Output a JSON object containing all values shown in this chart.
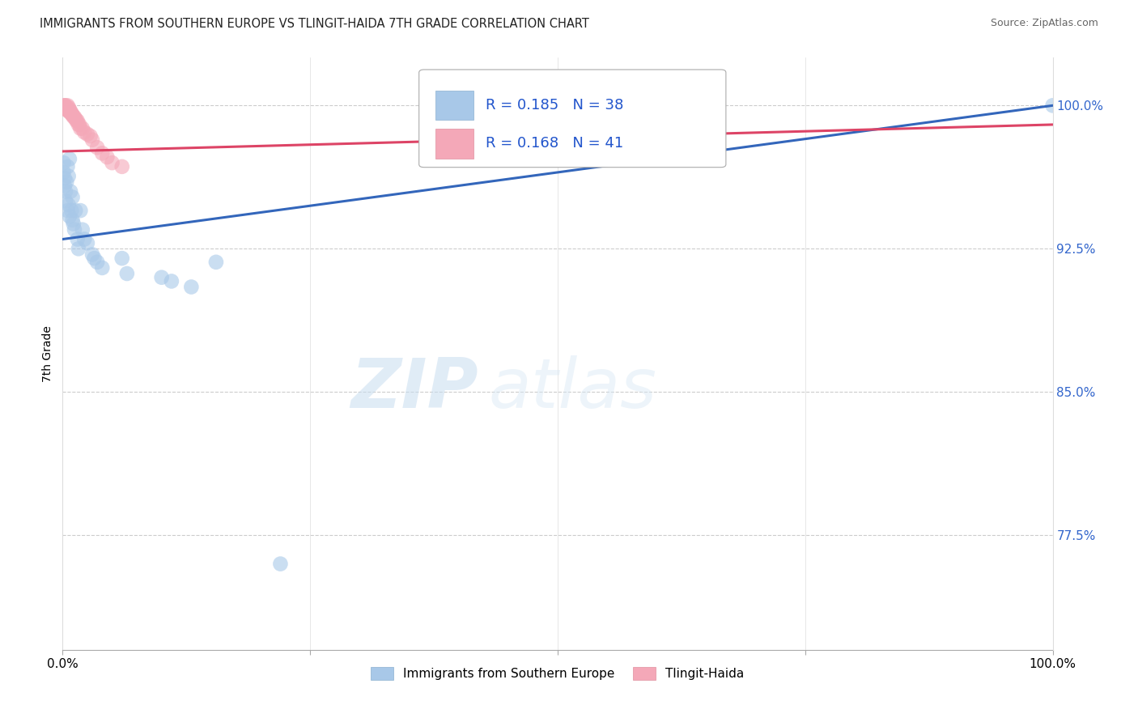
{
  "title": "IMMIGRANTS FROM SOUTHERN EUROPE VS TLINGIT-HAIDA 7TH GRADE CORRELATION CHART",
  "source": "Source: ZipAtlas.com",
  "ylabel": "7th Grade",
  "ytick_labels": [
    "77.5%",
    "85.0%",
    "92.5%",
    "100.0%"
  ],
  "ytick_values": [
    0.775,
    0.85,
    0.925,
    1.0
  ],
  "xlim": [
    0.0,
    1.0
  ],
  "ylim": [
    0.715,
    1.025
  ],
  "legend_r1": "R = 0.185",
  "legend_n1": "N = 38",
  "legend_r2": "R = 0.168",
  "legend_n2": "N = 41",
  "legend_label1": "Immigrants from Southern Europe",
  "legend_label2": "Tlingit-Haida",
  "blue_color": "#a8c8e8",
  "pink_color": "#f4a8b8",
  "blue_line_color": "#3366bb",
  "pink_line_color": "#dd4466",
  "blue_scatter_x": [
    0.001,
    0.001,
    0.002,
    0.002,
    0.003,
    0.003,
    0.004,
    0.005,
    0.005,
    0.006,
    0.006,
    0.007,
    0.007,
    0.008,
    0.009,
    0.01,
    0.01,
    0.011,
    0.012,
    0.013,
    0.015,
    0.016,
    0.018,
    0.02,
    0.022,
    0.025,
    0.03,
    0.032,
    0.035,
    0.04,
    0.06,
    0.065,
    0.1,
    0.11,
    0.13,
    0.155,
    0.22,
    1.0
  ],
  "blue_scatter_y": [
    0.97,
    0.965,
    0.962,
    0.958,
    0.955,
    0.95,
    0.96,
    0.968,
    0.945,
    0.963,
    0.948,
    0.972,
    0.942,
    0.955,
    0.945,
    0.952,
    0.94,
    0.938,
    0.935,
    0.945,
    0.93,
    0.925,
    0.945,
    0.935,
    0.93,
    0.928,
    0.922,
    0.92,
    0.918,
    0.915,
    0.92,
    0.912,
    0.91,
    0.908,
    0.905,
    0.918,
    0.76,
    1.0
  ],
  "pink_scatter_x": [
    0.001,
    0.001,
    0.002,
    0.002,
    0.003,
    0.003,
    0.004,
    0.004,
    0.005,
    0.005,
    0.006,
    0.006,
    0.007,
    0.007,
    0.008,
    0.008,
    0.009,
    0.01,
    0.01,
    0.011,
    0.012,
    0.013,
    0.014,
    0.015,
    0.016,
    0.017,
    0.018,
    0.02,
    0.022,
    0.025,
    0.028,
    0.03,
    0.035,
    0.04,
    0.045,
    0.05,
    0.06,
    0.42,
    0.5,
    0.58,
    0.65
  ],
  "pink_scatter_y": [
    1.0,
    0.999,
    1.0,
    0.999,
    1.0,
    0.998,
    0.999,
    0.998,
    1.0,
    0.998,
    0.999,
    0.997,
    0.998,
    0.997,
    0.997,
    0.996,
    0.996,
    0.995,
    0.995,
    0.994,
    0.994,
    0.993,
    0.992,
    0.992,
    0.99,
    0.99,
    0.988,
    0.988,
    0.986,
    0.985,
    0.984,
    0.982,
    0.978,
    0.975,
    0.973,
    0.97,
    0.968,
    0.99,
    0.992,
    0.993,
    0.994
  ],
  "blue_line_x0": 0.0,
  "blue_line_y0": 0.93,
  "blue_line_x1": 1.0,
  "blue_line_y1": 1.0,
  "pink_line_x0": 0.0,
  "pink_line_y0": 0.976,
  "pink_line_x1": 1.0,
  "pink_line_y1": 0.99
}
